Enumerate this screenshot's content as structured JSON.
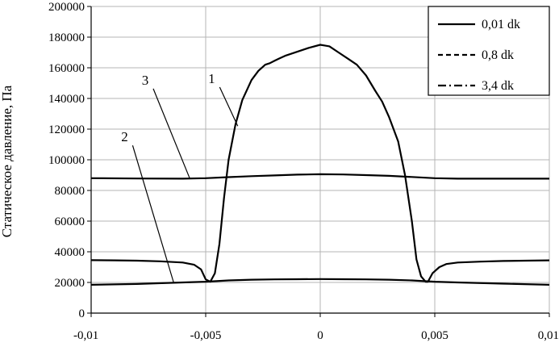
{
  "chart_data": {
    "type": "line",
    "title": "",
    "xlabel": "",
    "ylabel": "Статическое давление, Па",
    "xlim": [
      -0.01,
      0.01
    ],
    "ylim": [
      0,
      200000
    ],
    "x_ticks": [
      "-0,01",
      "-0,005",
      "0",
      "0,005",
      "0,01"
    ],
    "y_ticks": [
      "0",
      "20000",
      "40000",
      "60000",
      "80000",
      "100000",
      "120000",
      "140000",
      "160000",
      "180000",
      "200000"
    ],
    "grid": true,
    "legend_position": "top-right",
    "series": [
      {
        "name": "0,01 dk",
        "label": "1",
        "dash": "solid",
        "x": [
          -0.01,
          -0.009,
          -0.008,
          -0.007,
          -0.006,
          -0.0055,
          -0.0052,
          -0.005,
          -0.0048,
          -0.0046,
          -0.0044,
          -0.0042,
          -0.004,
          -0.0037,
          -0.0034,
          -0.003,
          -0.0027,
          -0.0024,
          -0.0022,
          -0.002,
          -0.0018,
          -0.0015,
          -0.001,
          -0.0005,
          0,
          0.0002,
          0.0004,
          0.0008,
          0.0012,
          0.0016,
          0.002,
          0.0024,
          0.0027,
          0.003,
          0.0034,
          0.0037,
          0.004,
          0.0042,
          0.0044,
          0.0046,
          0.0047,
          0.0049,
          0.0052,
          0.0055,
          0.006,
          0.007,
          0.008,
          0.009,
          0.01
        ],
        "y": [
          34500,
          34400,
          34200,
          33800,
          33000,
          31500,
          28500,
          22000,
          20500,
          26000,
          45000,
          75000,
          100000,
          123000,
          139000,
          152000,
          158000,
          162000,
          163000,
          164500,
          166000,
          168000,
          170500,
          173000,
          175000,
          174500,
          174000,
          170000,
          166000,
          162000,
          155000,
          145000,
          138000,
          128000,
          112000,
          90000,
          60000,
          35000,
          24000,
          20500,
          20500,
          26000,
          30000,
          32000,
          33000,
          33600,
          34000,
          34200,
          34400
        ]
      },
      {
        "name": "0,8 dk",
        "label": "2",
        "dash": "dashed",
        "x": [
          -0.01,
          -0.008,
          -0.006,
          -0.005,
          -0.004,
          -0.003,
          -0.002,
          -0.001,
          0,
          0.001,
          0.002,
          0.003,
          0.004,
          0.005,
          0.006,
          0.008,
          0.01
        ],
        "y": [
          18500,
          19000,
          20000,
          20500,
          21300,
          21800,
          22000,
          22100,
          22200,
          22100,
          22000,
          21800,
          21300,
          20500,
          20000,
          19200,
          18500
        ]
      },
      {
        "name": "3,4 dk",
        "label": "3",
        "dash": "dashdot",
        "x": [
          -0.01,
          -0.008,
          -0.006,
          -0.005,
          -0.004,
          -0.003,
          -0.002,
          -0.001,
          0,
          0.001,
          0.002,
          0.003,
          0.004,
          0.005,
          0.006,
          0.008,
          0.01
        ],
        "y": [
          88000,
          87800,
          87700,
          88000,
          88700,
          89300,
          89800,
          90300,
          90600,
          90400,
          90000,
          89500,
          88800,
          88000,
          87700,
          87700,
          87700
        ]
      }
    ],
    "annotations": [
      {
        "text": "1",
        "series": 0,
        "label_at": [
          -0.0046,
          150000
        ],
        "point": [
          -0.0036,
          122000
        ]
      },
      {
        "text": "3",
        "series": 2,
        "label_at": [
          -0.0075,
          149000
        ],
        "point": [
          -0.0057,
          88000
        ]
      },
      {
        "text": "2",
        "series": 1,
        "label_at": [
          -0.0084,
          112000
        ],
        "point": [
          -0.0064,
          20000
        ]
      }
    ]
  }
}
